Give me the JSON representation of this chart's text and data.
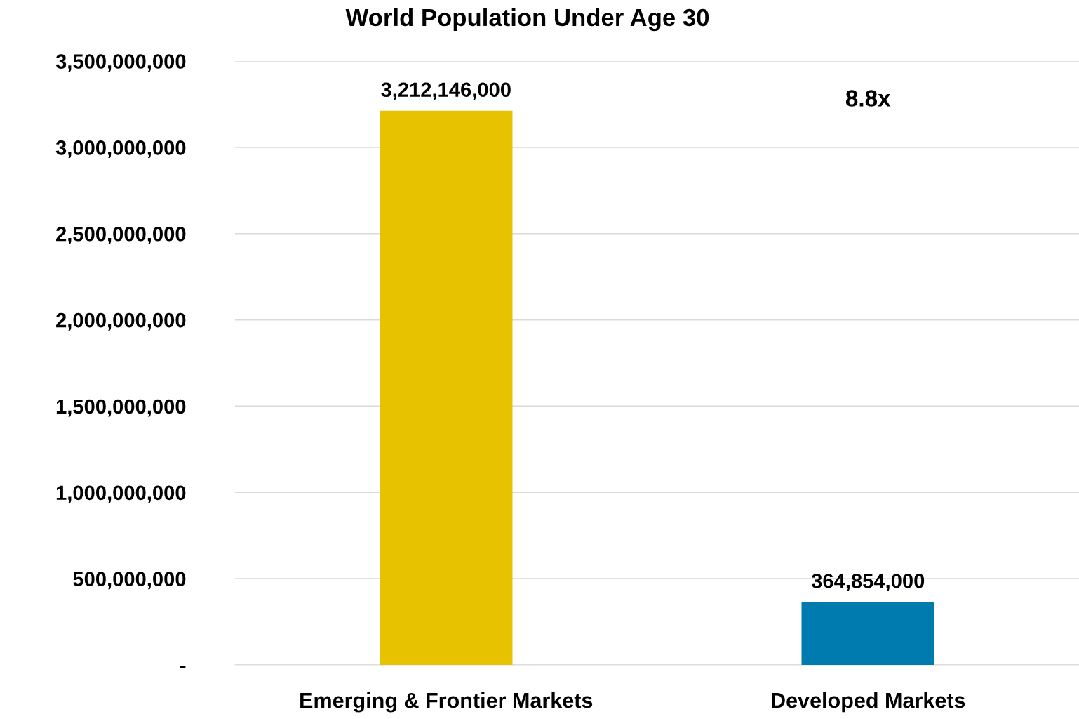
{
  "chart_data": {
    "type": "bar",
    "title": "World Population Under Age 30",
    "categories": [
      "Emerging & Frontier Markets",
      "Developed Markets"
    ],
    "values": [
      3212146000,
      364854000
    ],
    "colors": [
      "#e6c200",
      "#007bb0"
    ],
    "value_labels": [
      "3,212,146,000",
      "364,854,000"
    ],
    "annotations": [
      "8.8x"
    ],
    "ylim": [
      0,
      3500000000
    ],
    "yticks": [
      {
        "value": 0,
        "label": "-"
      },
      {
        "value": 500000000,
        "label": "500,000,000"
      },
      {
        "value": 1000000000,
        "label": "1,000,000,000"
      },
      {
        "value": 1500000000,
        "label": "1,500,000,000"
      },
      {
        "value": 2000000000,
        "label": "2,000,000,000"
      },
      {
        "value": 2500000000,
        "label": "2,500,000,000"
      },
      {
        "value": 3000000000,
        "label": "3,000,000,000"
      },
      {
        "value": 3500000000,
        "label": "3,500,000,000"
      }
    ],
    "grid": "y",
    "legend": false
  }
}
